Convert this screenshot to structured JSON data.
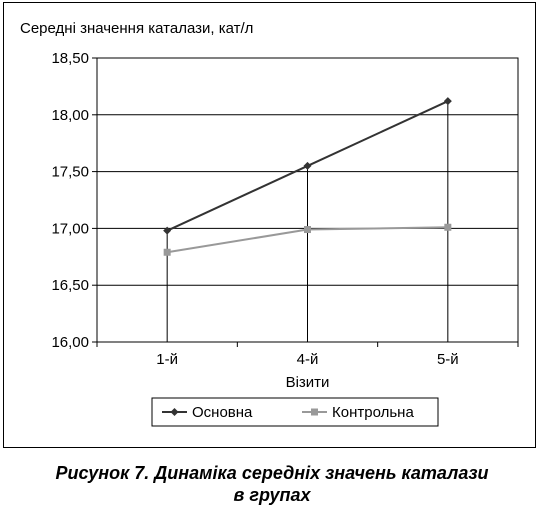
{
  "chart_data": {
    "type": "line",
    "ylabel": "Середні значення каталази, кат/л",
    "xlabel": "Візити",
    "categories": [
      "1-й",
      "4-й",
      "5-й"
    ],
    "ylim": [
      16.0,
      18.5
    ],
    "yticks": [
      "16,00",
      "16,50",
      "17,00",
      "17,50",
      "18,00",
      "18,50"
    ],
    "ytick_values": [
      16.0,
      16.5,
      17.0,
      17.5,
      18.0,
      18.5
    ],
    "series": [
      {
        "name": "Основна",
        "values": [
          16.98,
          17.55,
          18.12
        ],
        "color": "#333333",
        "marker": "diamond"
      },
      {
        "name": "Контрольна",
        "values": [
          16.79,
          16.99,
          17.01
        ],
        "color": "#999999",
        "marker": "square"
      }
    ],
    "grid": true,
    "legend_position": "bottom"
  },
  "caption": {
    "line1": "Рисунок 7. Динаміка середніх значень каталази",
    "line2": "в групах"
  }
}
